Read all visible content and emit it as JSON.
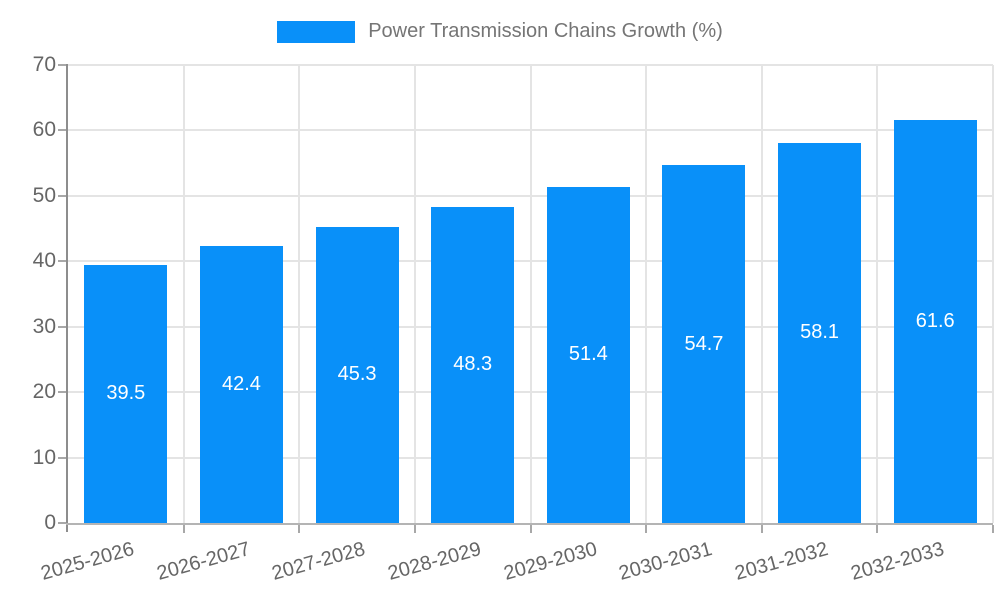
{
  "colors": {
    "bar": "#0990F9",
    "grid": "#e4e4e4",
    "y_axis_line": "#8d8d8d",
    "x_axis_line": "#b4b4b4",
    "tick": "#a8a8a8",
    "tick_label_text": "#666666",
    "legend_text": "#757575",
    "value_label_text": "#ffffff"
  },
  "chart_data": {
    "type": "bar",
    "title": "Power Transmission Chains Growth (%)",
    "categories": [
      "2025-2026",
      "2026-2027",
      "2027-2028",
      "2028-2029",
      "2029-2030",
      "2030-2031",
      "2031-2032",
      "2032-2033"
    ],
    "values": [
      39.5,
      42.4,
      45.3,
      48.3,
      51.4,
      54.7,
      58.1,
      61.6
    ],
    "value_labels": [
      "39.5",
      "42.4",
      "45.3",
      "48.3",
      "51.4",
      "54.7",
      "58.1",
      "61.6"
    ],
    "xlabel": "",
    "ylabel": "",
    "ylim": [
      0,
      70
    ],
    "yticks": [
      0,
      10,
      20,
      30,
      40,
      50,
      60,
      70
    ],
    "grid": true,
    "legend_position": "top-center",
    "legend_entries": [
      "Power Transmission Chains Growth (%)"
    ],
    "x_tick_rotation_deg": -15.5,
    "value_labels_position": "centered-inside-bars"
  }
}
